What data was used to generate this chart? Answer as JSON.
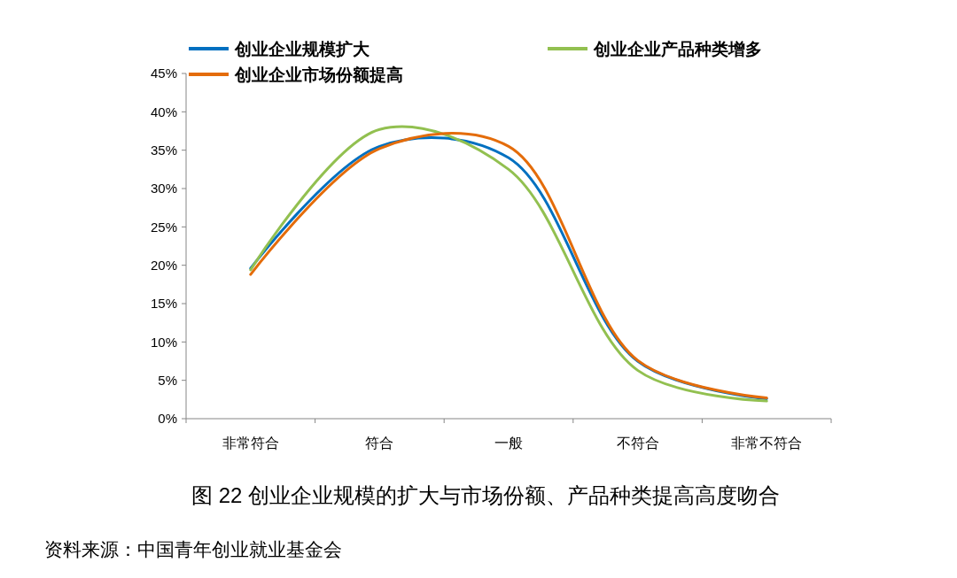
{
  "chart_data": {
    "type": "line",
    "title": "图 22 创业企业规模的扩大与市场份额、产品种类提高高度吻合",
    "categories": [
      "非常符合",
      "符合",
      "一般",
      "不符合",
      "非常不符合"
    ],
    "series": [
      {
        "name": "创业企业规模扩大",
        "color": "#0070c0",
        "values": [
          19.6,
          35.5,
          34.0,
          7.5,
          2.6
        ]
      },
      {
        "name": "创业企业产品种类增多",
        "color": "#92c050",
        "values": [
          19.4,
          37.7,
          32.5,
          6.3,
          2.3
        ]
      },
      {
        "name": "创业企业市场份额提高",
        "color": "#e46c0a",
        "values": [
          18.8,
          35.2,
          35.5,
          7.6,
          2.7
        ]
      }
    ],
    "ylim": [
      0,
      45
    ],
    "yticks": [
      {
        "value": 0,
        "label": "0%"
      },
      {
        "value": 5,
        "label": "5%"
      },
      {
        "value": 10,
        "label": "10%"
      },
      {
        "value": 15,
        "label": "15%"
      },
      {
        "value": 20,
        "label": "20%"
      },
      {
        "value": 25,
        "label": "25%"
      },
      {
        "value": 30,
        "label": "30%"
      },
      {
        "value": 35,
        "label": "35%"
      },
      {
        "value": 40,
        "label": "40%"
      },
      {
        "value": 45,
        "label": "45%"
      }
    ],
    "grid": false,
    "legend": "top",
    "marker": "none",
    "line_style": "solid",
    "annotations": [
      "资料来源：中国青年创业就业基金会"
    ]
  }
}
